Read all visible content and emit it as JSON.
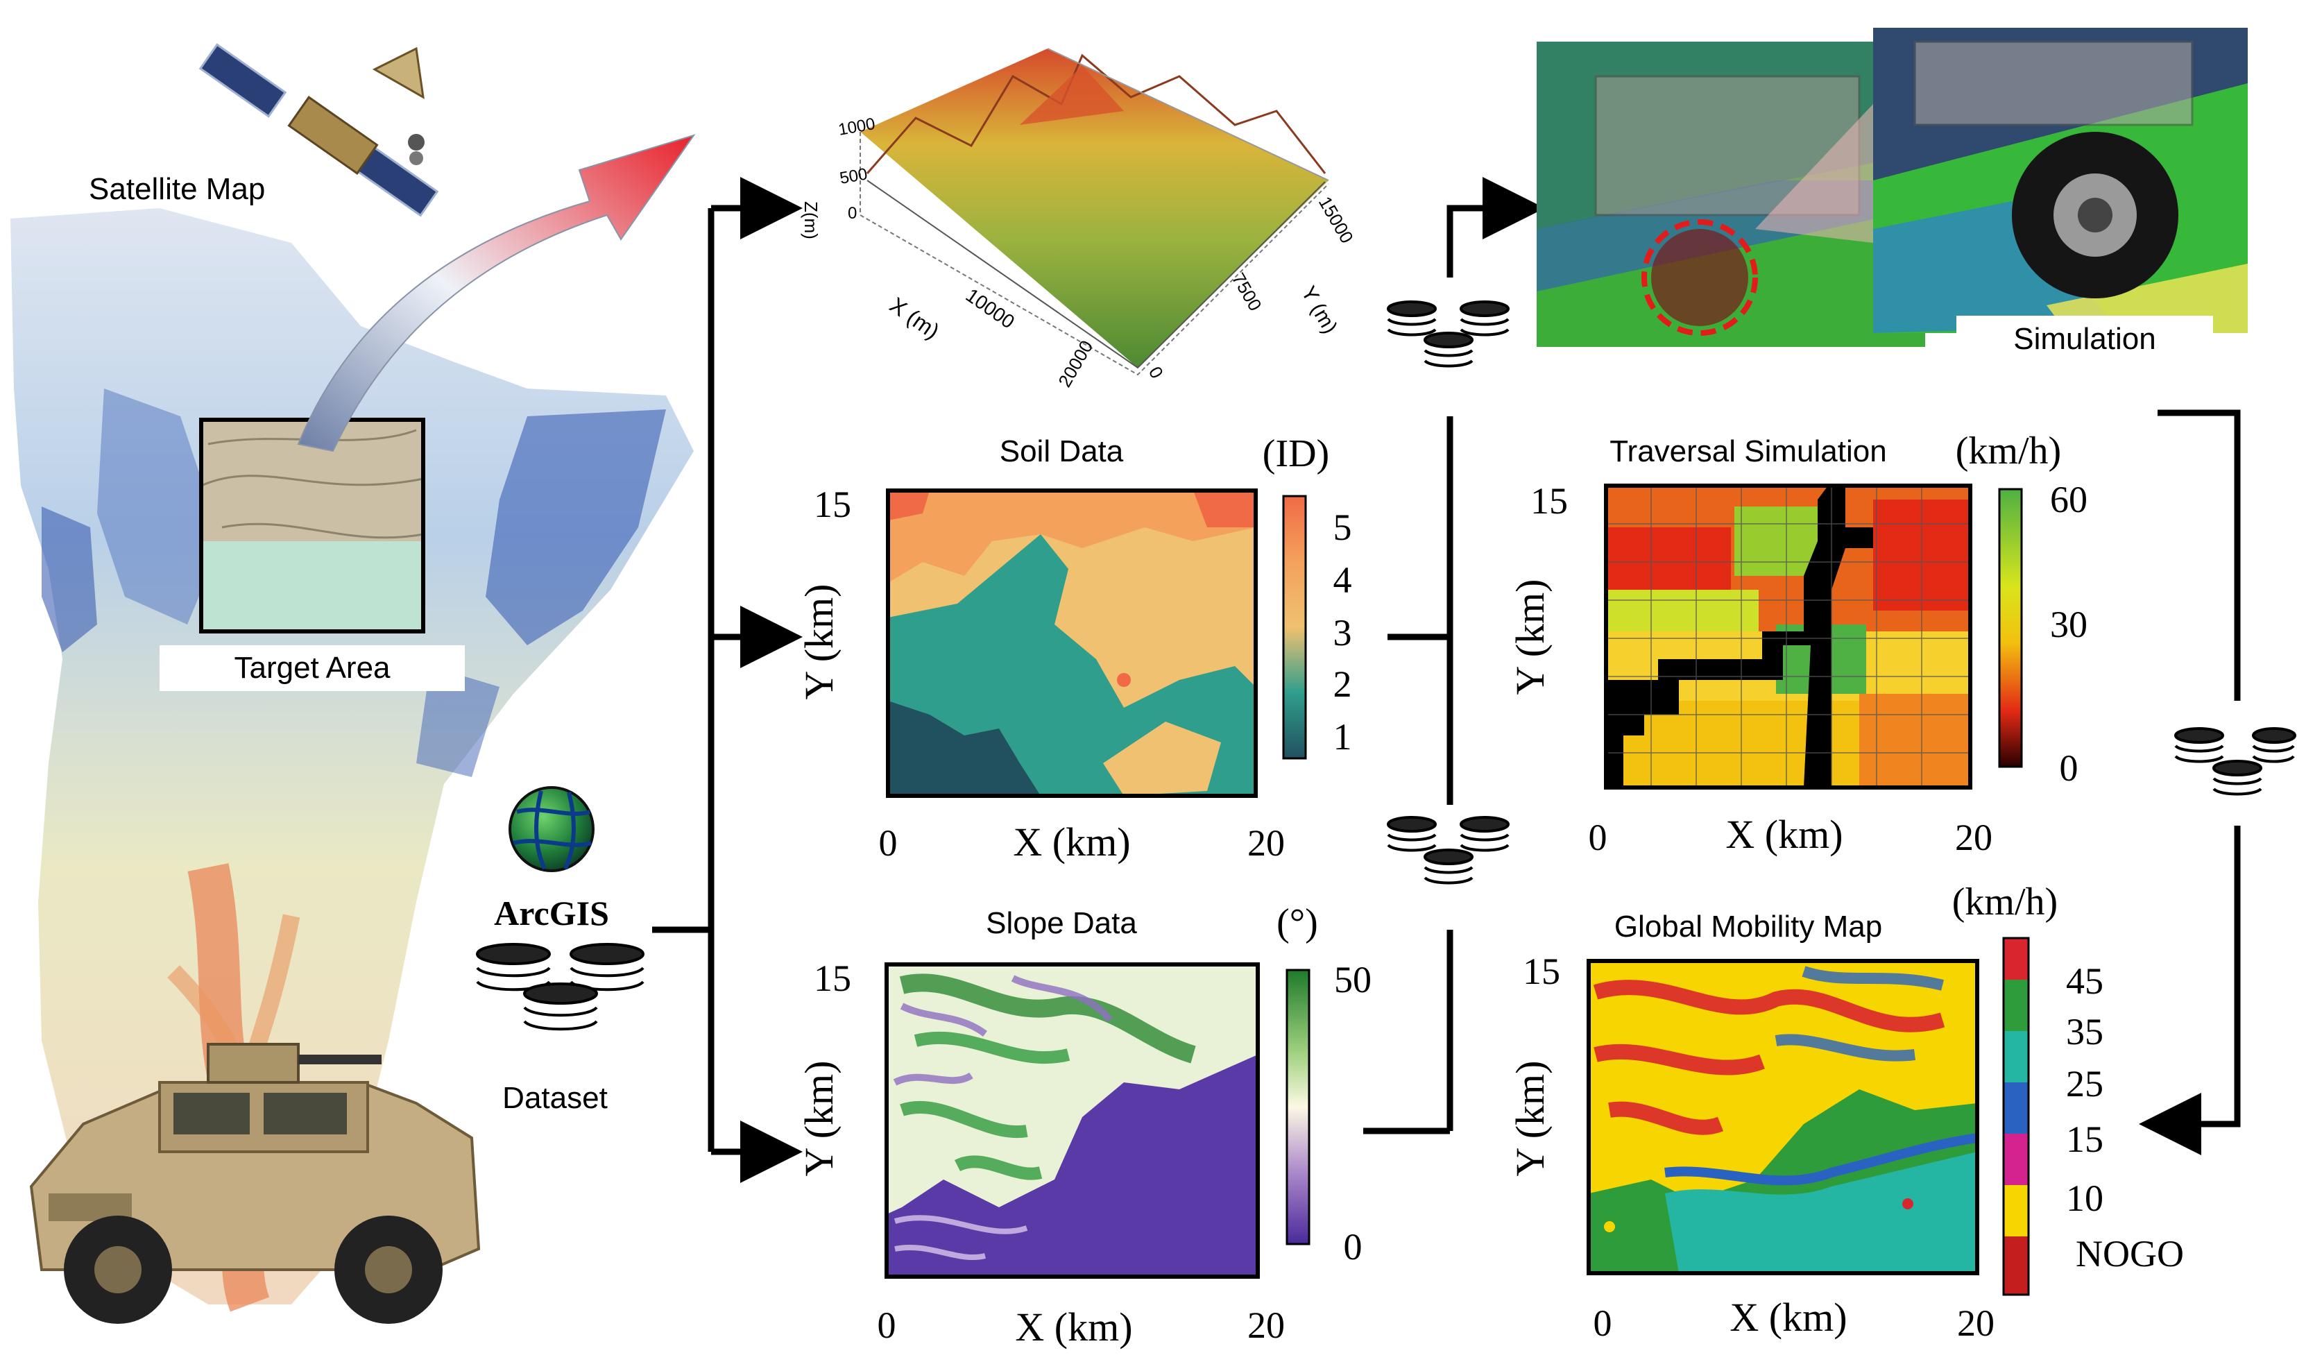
{
  "left": {
    "satellite_label": "Satellite Map",
    "target_label": "Target Area",
    "arcgis_label": "ArcGIS",
    "dataset_label": "Dataset"
  },
  "middle": {
    "terrain3d": {
      "z_ticks": [
        "1000",
        "500",
        "0"
      ],
      "z_label": "Z(m)",
      "x_tick": "10000",
      "x_label": "X (m)",
      "y_ticks": [
        "15000",
        "7500",
        "0"
      ],
      "y_label": "Y (m)",
      "corner_tick": "20000"
    },
    "soil": {
      "title": "Soil Data",
      "unit": "(ID)",
      "y_max": "15",
      "x_min": "0",
      "x_max": "20",
      "xlabel": "X (km)",
      "ylabel": "Y (km)",
      "cb_ticks": [
        "5",
        "4",
        "3",
        "2",
        "1"
      ]
    },
    "slope": {
      "title": "Slope Data",
      "unit": "(°)",
      "y_max": "15",
      "x_min": "0",
      "x_max": "20",
      "xlabel": "X (km)",
      "ylabel": "Y (km)",
      "cb_ticks": [
        "50",
        "0"
      ]
    }
  },
  "right": {
    "simulation_label": "Simulation",
    "traversal": {
      "title": "Traversal Simulation",
      "unit": "(km/h)",
      "y_max": "15",
      "x_min": "0",
      "x_max": "20",
      "xlabel": "X (km)",
      "ylabel": "Y (km)",
      "cb_ticks": [
        "60",
        "30",
        "0"
      ]
    },
    "mobility": {
      "title": "Global Mobility Map",
      "unit": "(km/h)",
      "y_max": "15",
      "x_min": "0",
      "x_max": "20",
      "xlabel": "X (km)",
      "ylabel": "Y (km)",
      "legend": [
        "45",
        "35",
        "25",
        "15",
        "10",
        "NOGO"
      ]
    }
  },
  "colors": {
    "soil": [
      "#f06a46",
      "#f4a15c",
      "#efc170",
      "#2f9e8c",
      "#21505e"
    ],
    "mobility": [
      "#d9262e",
      "#2f9c3b",
      "#25b5a3",
      "#2a62c2",
      "#d4238f",
      "#f6d500",
      "#c41e1e"
    ]
  }
}
